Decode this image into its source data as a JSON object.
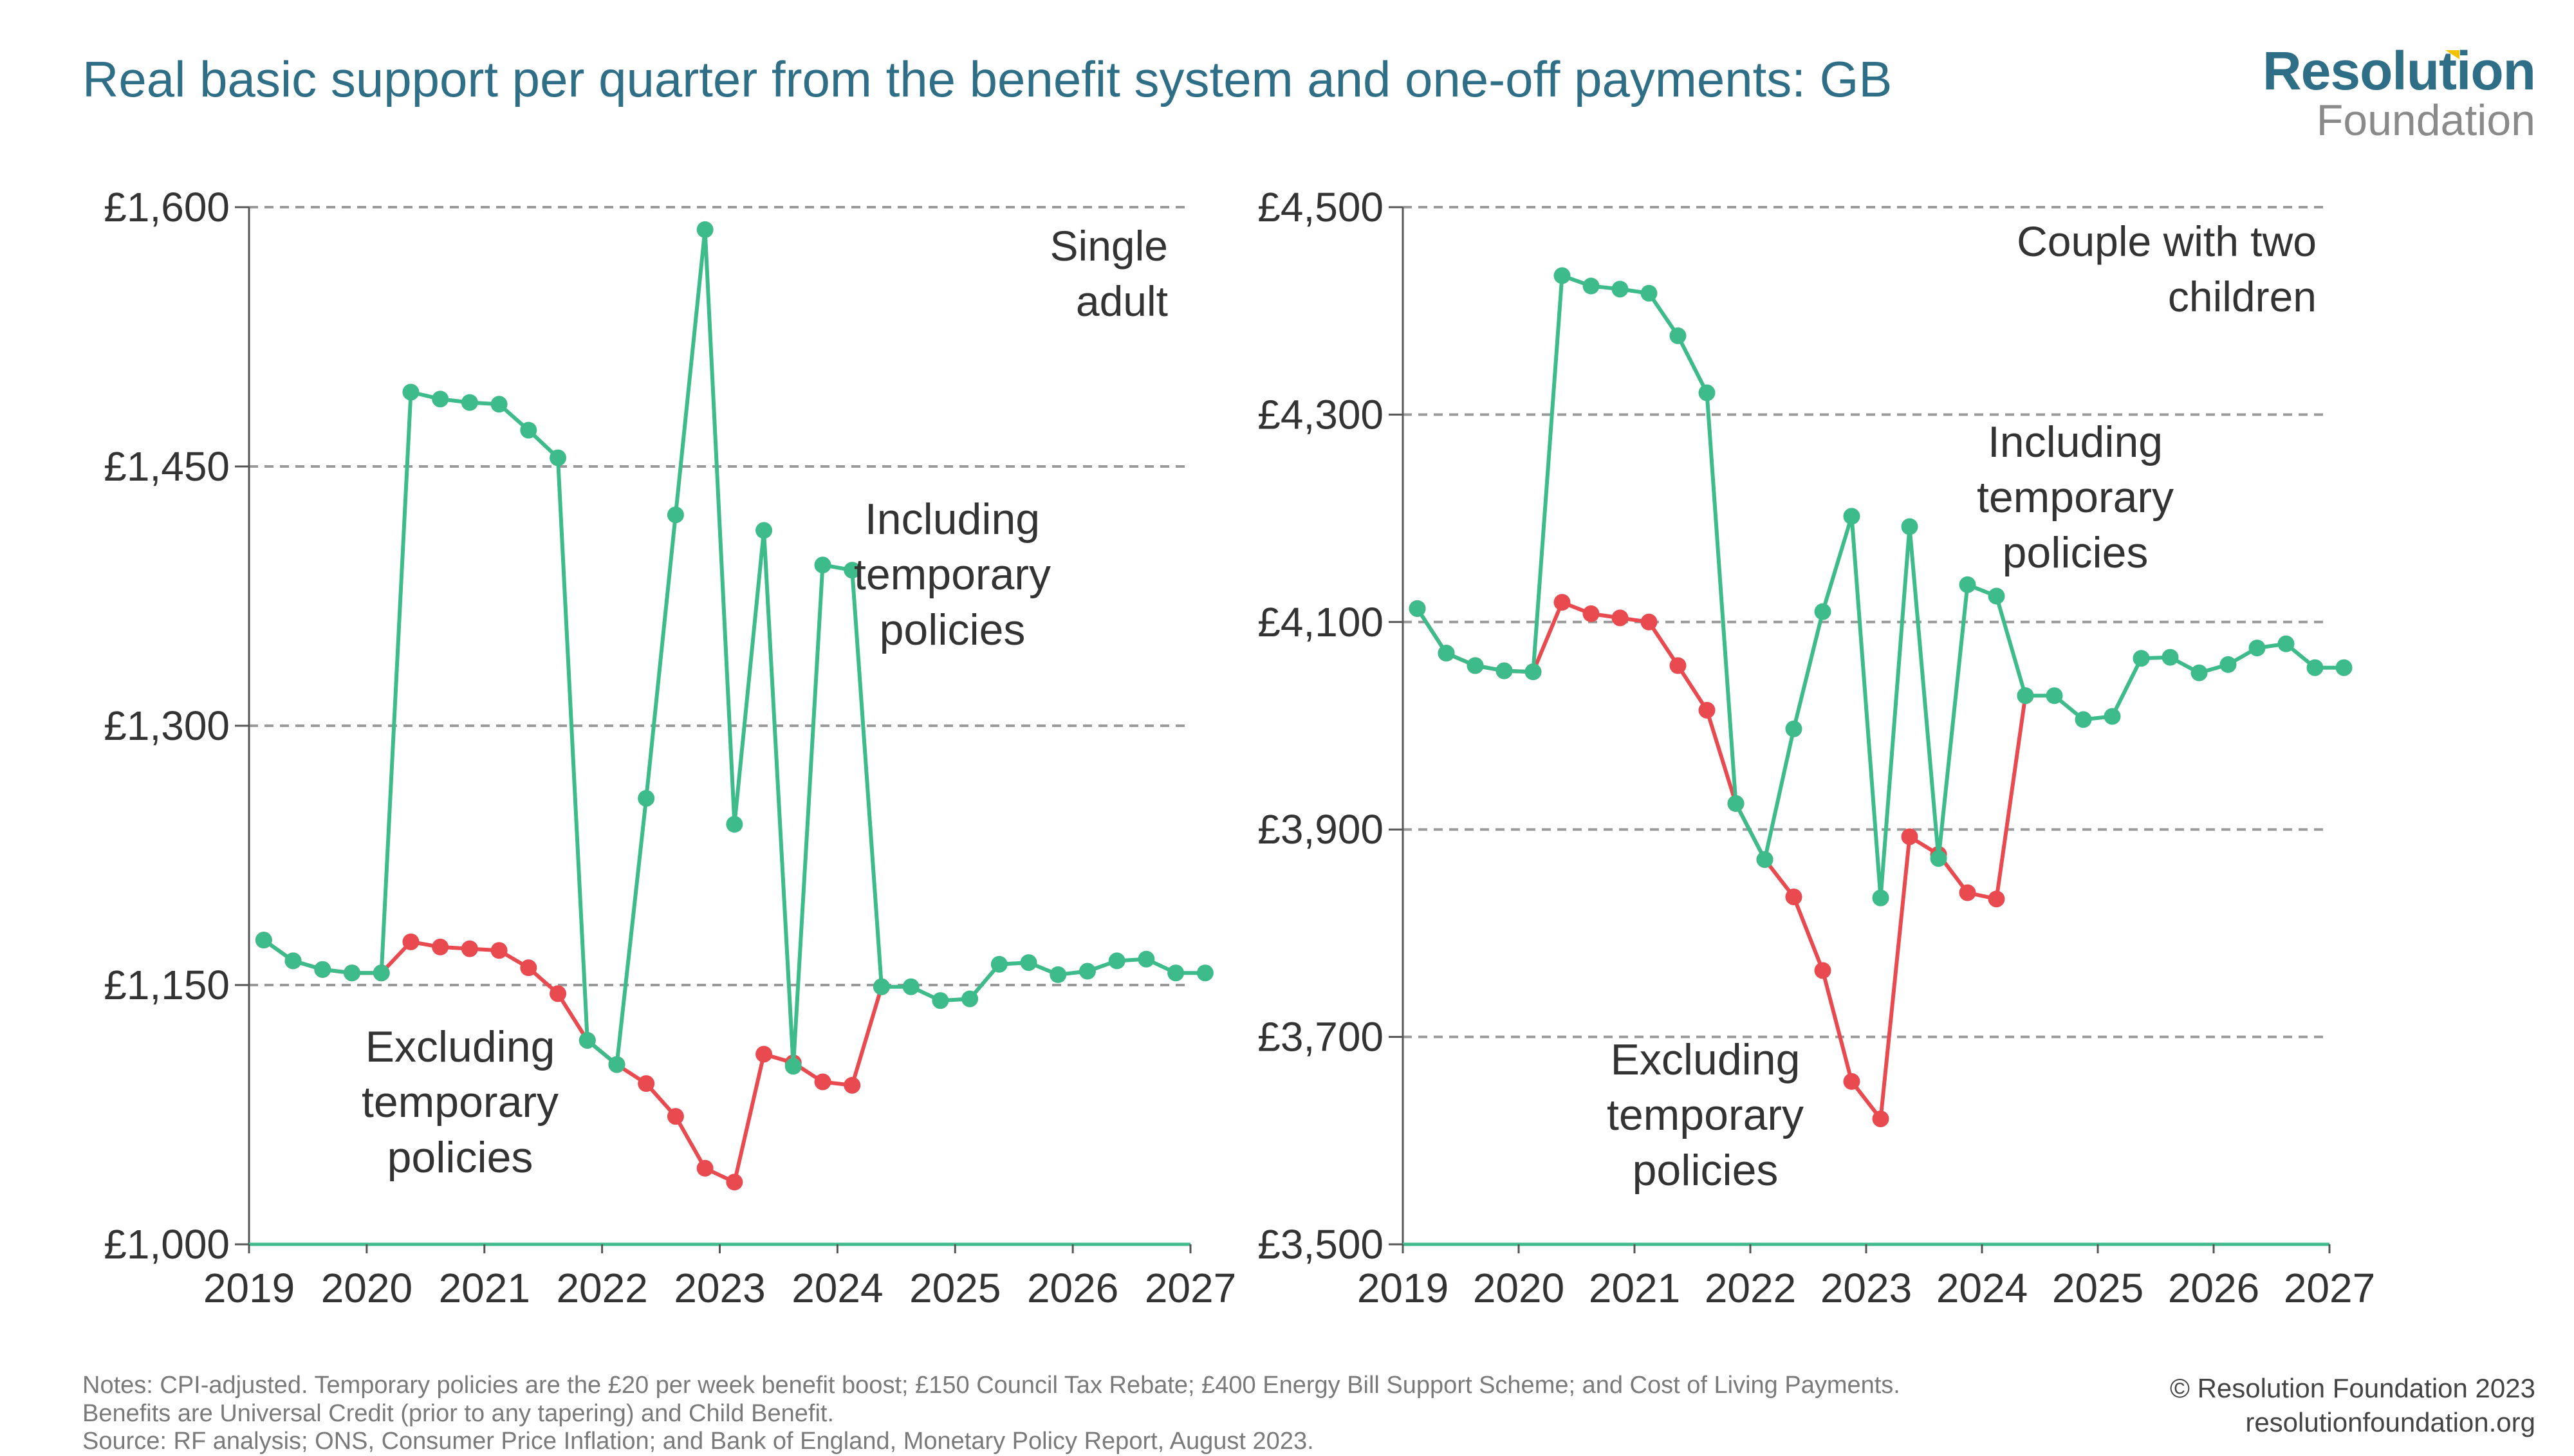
{
  "header": {
    "title": "Real basic support per quarter from the benefit system and one-off payments: GB",
    "logo_main": "Resolution",
    "logo_sub": "Foundation"
  },
  "colors": {
    "including": "#3dbb8a",
    "excluding": "#e84a4f",
    "title": "#2e6e86",
    "grid": "#9a9a9a",
    "axis": "#3dbb8a"
  },
  "chart_data": [
    {
      "type": "line",
      "panel_label": "Single\nadult",
      "ylim": [
        1000,
        1600
      ],
      "yticks": [
        1000,
        1150,
        1300,
        1450,
        1600
      ],
      "ytick_labels": [
        "£1,000",
        "£1,150",
        "£1,300",
        "£1,450",
        "£1,600"
      ],
      "xlim": [
        2019,
        2027
      ],
      "xticks": [
        "2019",
        "2020",
        "2021",
        "2022",
        "2023",
        "2024",
        "2025",
        "2026",
        "2027"
      ],
      "grid": true,
      "series": [
        {
          "name": "Including temporary policies",
          "label_lines": [
            "Including",
            "temporary",
            "policies"
          ],
          "color_key": "including",
          "x": [
            2019.125,
            2019.375,
            2019.625,
            2019.875,
            2020.125,
            2020.375,
            2020.625,
            2020.875,
            2021.125,
            2021.375,
            2021.625,
            2021.875,
            2022.125,
            2022.375,
            2022.625,
            2022.875,
            2023.125,
            2023.375,
            2023.625,
            2023.875,
            2024.125,
            2024.375,
            2024.625,
            2024.875,
            2025.125,
            2025.375,
            2025.625,
            2025.875,
            2026.125,
            2026.375,
            2026.625,
            2026.875,
            2027.125
          ],
          "y": [
            1176,
            1164,
            1159,
            1157,
            1157,
            1493,
            1489,
            1487,
            1486,
            1471,
            1455,
            1118,
            1104,
            1258,
            1422,
            1587,
            1243,
            1413,
            1103,
            1393,
            1390,
            1149,
            1149,
            1141,
            1142,
            1162,
            1163,
            1156,
            1158,
            1164,
            1165,
            1157,
            1157
          ]
        },
        {
          "name": "Excluding temporary policies",
          "label_lines": [
            "Excluding",
            "temporary",
            "policies"
          ],
          "color_key": "excluding",
          "x": [
            2019.125,
            2019.375,
            2019.625,
            2019.875,
            2020.125,
            2020.375,
            2020.625,
            2020.875,
            2021.125,
            2021.375,
            2021.625,
            2021.875,
            2022.125,
            2022.375,
            2022.625,
            2022.875,
            2023.125,
            2023.375,
            2023.625,
            2023.875,
            2024.125,
            2024.375
          ],
          "y": [
            1176,
            1164,
            1159,
            1157,
            1157,
            1175,
            1172,
            1171,
            1170,
            1160,
            1145,
            1118,
            1104,
            1093,
            1074,
            1044,
            1036,
            1110,
            1105,
            1094,
            1092,
            1149
          ]
        }
      ]
    },
    {
      "type": "line",
      "panel_label": "Couple with two\nchildren",
      "ylim": [
        3500,
        4500
      ],
      "yticks": [
        3500,
        3700,
        3900,
        4100,
        4300,
        4500
      ],
      "ytick_labels": [
        "£3,500",
        "£3,700",
        "£3,900",
        "£4,100",
        "£4,300",
        "£4,500"
      ],
      "xlim": [
        2019,
        2027
      ],
      "xticks": [
        "2019",
        "2020",
        "2021",
        "2022",
        "2023",
        "2024",
        "2025",
        "2026",
        "2027"
      ],
      "grid": true,
      "series": [
        {
          "name": "Including temporary policies",
          "label_lines": [
            "Including",
            "temporary",
            "policies"
          ],
          "color_key": "including",
          "x": [
            2019.125,
            2019.375,
            2019.625,
            2019.875,
            2020.125,
            2020.375,
            2020.625,
            2020.875,
            2021.125,
            2021.375,
            2021.625,
            2021.875,
            2022.125,
            2022.375,
            2022.625,
            2022.875,
            2023.125,
            2023.375,
            2023.625,
            2023.875,
            2024.125,
            2024.375,
            2024.625,
            2024.875,
            2025.125,
            2025.375,
            2025.625,
            2025.875,
            2026.125,
            2026.375,
            2026.625,
            2026.875,
            2027.125
          ],
          "y": [
            4113,
            4070,
            4058,
            4053,
            4052,
            4434,
            4424,
            4421,
            4417,
            4376,
            4321,
            3925,
            3871,
            3997,
            4110,
            4202,
            3834,
            4192,
            3872,
            4136,
            4125,
            4029,
            4029,
            4006,
            4009,
            4065,
            4066,
            4051,
            4059,
            4075,
            4079,
            4056,
            4056
          ]
        },
        {
          "name": "Excluding temporary policies",
          "label_lines": [
            "Excluding",
            "temporary",
            "policies"
          ],
          "color_key": "excluding",
          "x": [
            2019.125,
            2019.375,
            2019.625,
            2019.875,
            2020.125,
            2020.375,
            2020.625,
            2020.875,
            2021.125,
            2021.375,
            2021.625,
            2021.875,
            2022.125,
            2022.375,
            2022.625,
            2022.875,
            2023.125,
            2023.375,
            2023.625,
            2023.875,
            2024.125,
            2024.375
          ],
          "y": [
            4113,
            4070,
            4058,
            4053,
            4052,
            4119,
            4108,
            4104,
            4100,
            4058,
            4015,
            3925,
            3871,
            3835,
            3764,
            3657,
            3621,
            3893,
            3876,
            3839,
            3833,
            4029
          ]
        }
      ]
    }
  ],
  "footer": {
    "notes_line1": "Notes: CPI-adjusted. Temporary policies are the £20 per week benefit boost; £150 Council Tax Rebate; £400 Energy Bill Support Scheme; and Cost of Living Payments.",
    "notes_line2": "Benefits are Universal Credit (prior to any tapering) and Child Benefit.",
    "source": "Source: RF analysis; ONS, Consumer Price Inflation; and Bank of England, Monetary Policy Report, August 2023.",
    "copyright": "© Resolution Foundation 2023",
    "website": "resolutionfoundation.org"
  }
}
